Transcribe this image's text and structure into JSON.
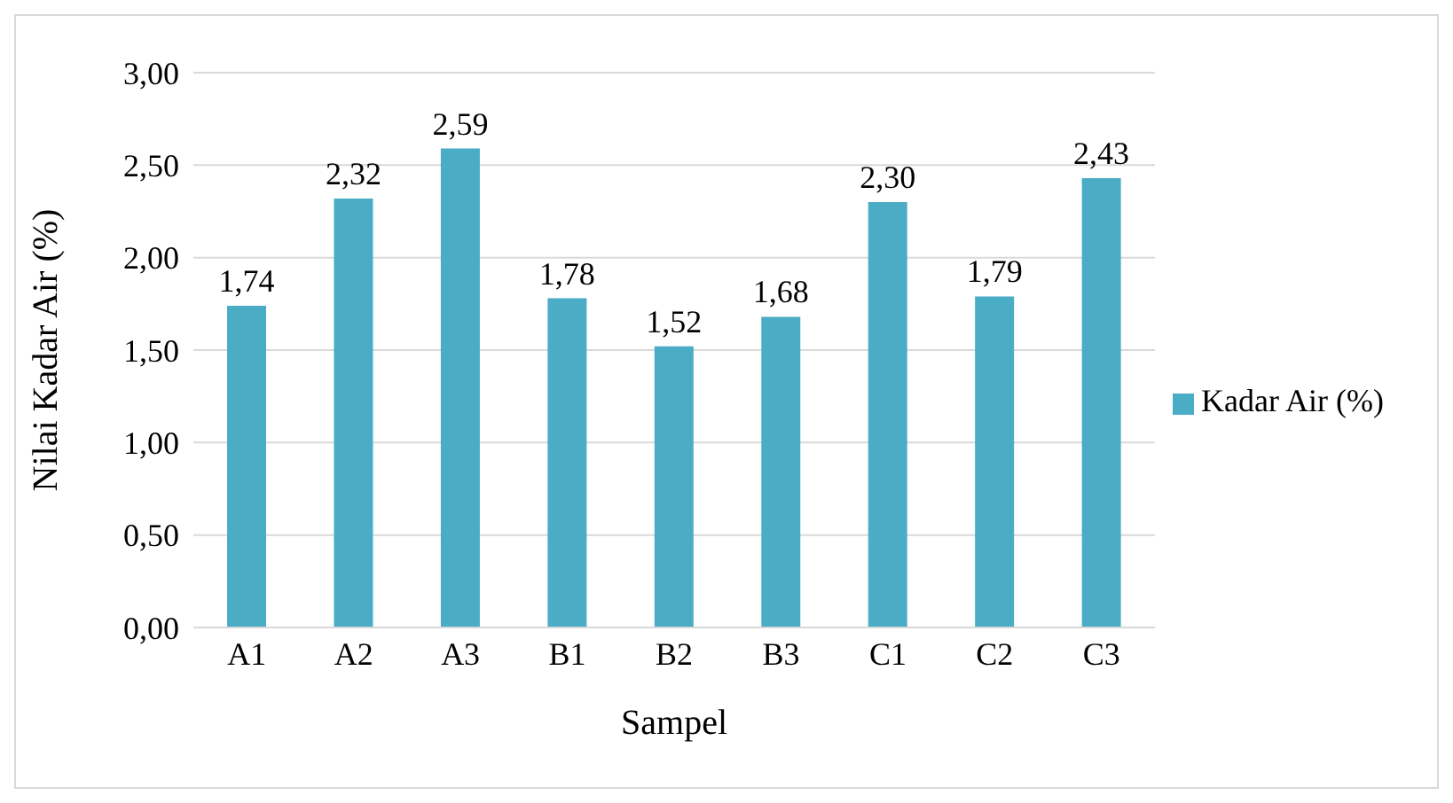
{
  "chart_data": {
    "type": "bar",
    "xlabel": "Sampel",
    "ylabel": "Nilai Kadar Air (%)",
    "categories": [
      "A1",
      "A2",
      "A3",
      "B1",
      "B2",
      "B3",
      "C1",
      "C2",
      "C3"
    ],
    "series": [
      {
        "name": "Kadar Air (%)",
        "color": "#4bacc6",
        "values": [
          1.74,
          2.32,
          2.59,
          1.78,
          1.52,
          1.68,
          2.3,
          1.79,
          2.43
        ],
        "value_labels": [
          "1,74",
          "2,32",
          "2,59",
          "1,78",
          "1,52",
          "1,68",
          "2,30",
          "1,79",
          "2,43"
        ]
      }
    ],
    "ylim": [
      0,
      3
    ],
    "yticks": [
      {
        "value": 0,
        "label": "0,00"
      },
      {
        "value": 0.5,
        "label": "0,50"
      },
      {
        "value": 1,
        "label": "1,00"
      },
      {
        "value": 1.5,
        "label": "1,50"
      },
      {
        "value": 2,
        "label": "2,00"
      },
      {
        "value": 2.5,
        "label": "2,50"
      },
      {
        "value": 3,
        "label": "3,00"
      }
    ],
    "grid": "y",
    "legend": "right"
  }
}
